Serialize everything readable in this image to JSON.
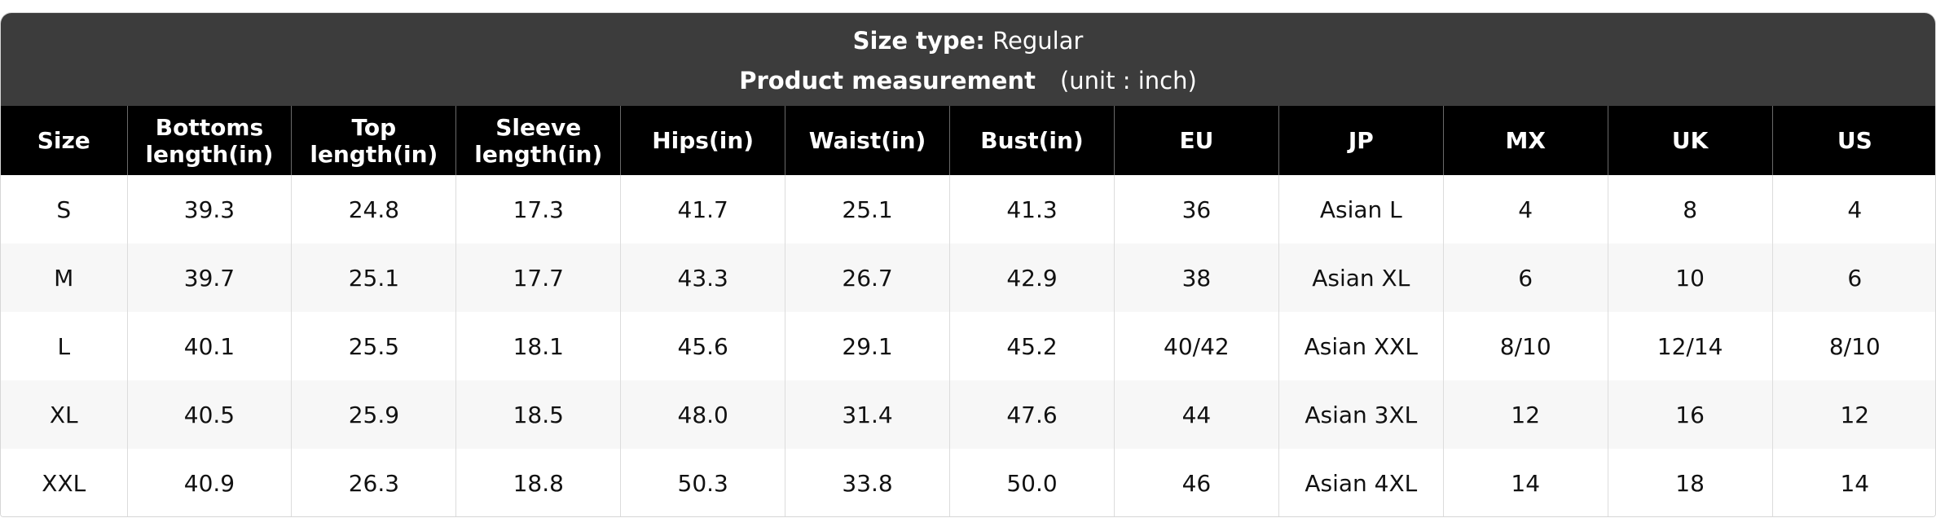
{
  "header": {
    "size_type_label": "Size type:",
    "size_type": "Regular",
    "title": "Product measurement",
    "unit": "(unit : inch)"
  },
  "table": {
    "columns": [
      "Size",
      "Bottoms length(in)",
      "Top length(in)",
      "Sleeve length(in)",
      "Hips(in)",
      "Waist(in)",
      "Bust(in)",
      "EU",
      "JP",
      "MX",
      "UK",
      "US"
    ],
    "rows": [
      [
        "S",
        "39.3",
        "24.8",
        "17.3",
        "41.7",
        "25.1",
        "41.3",
        "36",
        "Asian L",
        "4",
        "8",
        "4"
      ],
      [
        "M",
        "39.7",
        "25.1",
        "17.7",
        "43.3",
        "26.7",
        "42.9",
        "38",
        "Asian XL",
        "6",
        "10",
        "6"
      ],
      [
        "L",
        "40.1",
        "25.5",
        "18.1",
        "45.6",
        "29.1",
        "45.2",
        "40/42",
        "Asian XXL",
        "8/10",
        "12/14",
        "8/10"
      ],
      [
        "XL",
        "40.5",
        "25.9",
        "18.5",
        "48.0",
        "31.4",
        "47.6",
        "44",
        "Asian 3XL",
        "12",
        "16",
        "12"
      ],
      [
        "XXL",
        "40.9",
        "26.3",
        "18.8",
        "50.3",
        "33.8",
        "50.0",
        "46",
        "Asian 4XL",
        "14",
        "18",
        "14"
      ]
    ]
  }
}
